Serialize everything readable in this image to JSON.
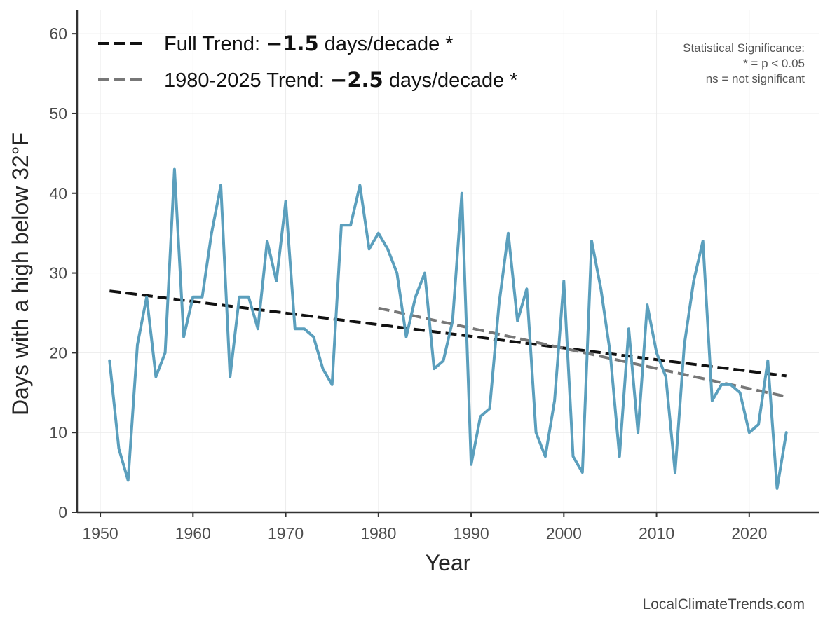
{
  "chart_data": {
    "type": "line",
    "xlabel": "Year",
    "ylabel": "Days with a high below 32°F",
    "xlim": [
      1947.5,
      2027.5
    ],
    "ylim": [
      0,
      63
    ],
    "xticks": [
      1950,
      1960,
      1970,
      1980,
      1990,
      2000,
      2010,
      2020
    ],
    "yticks": [
      0,
      10,
      20,
      30,
      40,
      50,
      60
    ],
    "grid": true,
    "series": [
      {
        "color": "#5b9fbd",
        "x": [
          1951,
          1952,
          1953,
          1954,
          1955,
          1956,
          1957,
          1958,
          1959,
          1960,
          1961,
          1962,
          1963,
          1964,
          1965,
          1966,
          1967,
          1968,
          1969,
          1970,
          1971,
          1972,
          1973,
          1974,
          1975,
          1976,
          1977,
          1978,
          1979,
          1980,
          1981,
          1982,
          1983,
          1984,
          1985,
          1986,
          1987,
          1988,
          1989,
          1990,
          1991,
          1992,
          1993,
          1994,
          1995,
          1996,
          1997,
          1998,
          1999,
          2000,
          2001,
          2002,
          2003,
          2004,
          2005,
          2006,
          2007,
          2008,
          2009,
          2010,
          2011,
          2012,
          2013,
          2014,
          2015,
          2016,
          2017,
          2018,
          2019,
          2020,
          2021,
          2022,
          2023,
          2024
        ],
        "values": [
          19,
          8,
          4,
          21,
          27,
          17,
          20,
          43,
          22,
          27,
          27,
          35,
          41,
          17,
          27,
          27,
          23,
          34,
          29,
          39,
          23,
          23,
          22,
          18,
          16,
          36,
          36,
          41,
          33,
          35,
          33,
          30,
          22,
          27,
          30,
          18,
          19,
          24,
          40,
          6,
          12,
          13,
          26,
          35,
          24,
          28,
          10,
          7,
          14,
          29,
          7,
          5,
          34,
          28,
          20,
          7,
          23,
          10,
          26,
          20,
          17,
          5,
          21,
          29,
          34,
          14,
          16,
          16,
          15,
          10,
          11,
          19,
          3,
          10
        ]
      }
    ],
    "trends": [
      {
        "name": "Full Trend",
        "label_prefix": "Full Trend: ",
        "value": "−1.5",
        "label_suffix": " days/decade *",
        "color": "#111111",
        "x": [
          1951,
          2024
        ],
        "y": [
          27.75,
          17.1
        ]
      },
      {
        "name": "1980-2025 Trend",
        "label_prefix": "1980-2025 Trend: ",
        "value": "−2.5",
        "label_suffix": " days/decade *",
        "color": "#777777",
        "x": [
          1980,
          2024
        ],
        "y": [
          25.6,
          14.5
        ]
      }
    ],
    "legend_position": "top-left",
    "significance_note": [
      "Statistical Significance:",
      "* = p < 0.05",
      "ns = not significant"
    ],
    "credit": "LocalClimateTrends.com"
  }
}
